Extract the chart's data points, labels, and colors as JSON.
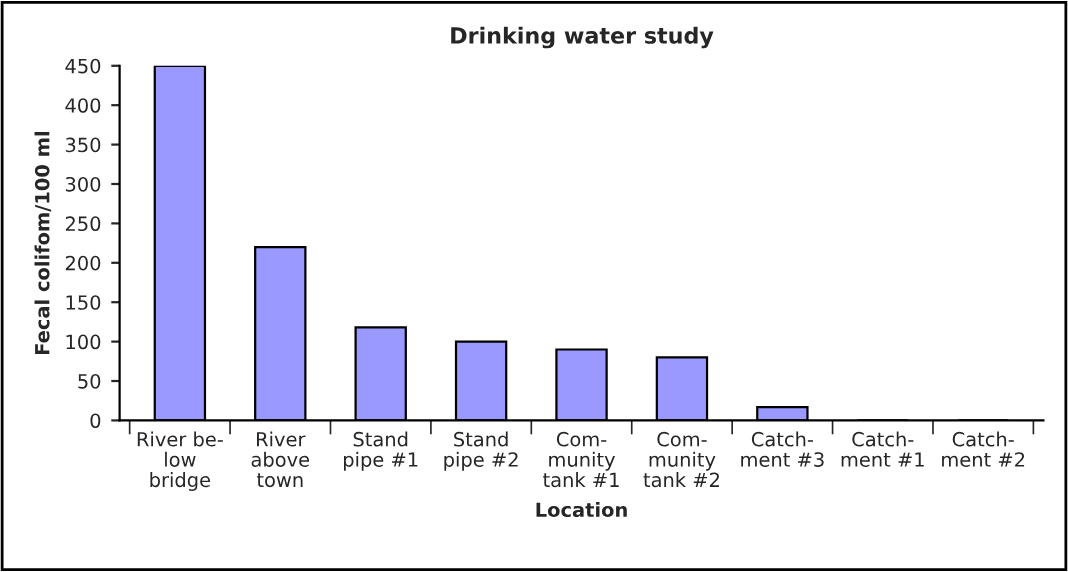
{
  "chart_data": {
    "type": "bar",
    "title": "Drinking water study",
    "xlabel": "Location",
    "ylabel": "Fecal colifom/100 ml",
    "categories": [
      "River be-\nlow\nbridge",
      "River\nabove\ntown",
      "Stand\npipe #1",
      "Stand\npipe #2",
      "Com-\nmunity\ntank #1",
      "Com-\nmunity\ntank #2",
      "Catch-\nment #3",
      "Catch-\nment #1",
      "Catch-\nment #2"
    ],
    "values": [
      450,
      220,
      118,
      100,
      90,
      80,
      17,
      0,
      0
    ],
    "color": "#9999ff",
    "ylim": [
      0,
      450
    ],
    "yticks": [
      0,
      50,
      100,
      150,
      200,
      250,
      300,
      350,
      400,
      450
    ],
    "grid": false,
    "legend": false
  }
}
